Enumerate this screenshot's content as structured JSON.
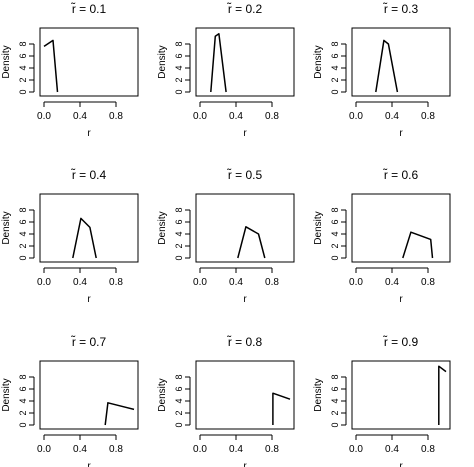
{
  "chart_data": [
    {
      "type": "line",
      "title": "r̃ = 0.1",
      "xlabel": "r",
      "ylabel": "Density",
      "xlim": [
        0,
        1
      ],
      "ylim": [
        0,
        10
      ],
      "x": [
        0.0,
        0.1,
        0.15
      ],
      "y": [
        7.6,
        8.6,
        0.0
      ]
    },
    {
      "type": "line",
      "title": "r̃ = 0.2",
      "xlabel": "r",
      "ylabel": "Density",
      "xlim": [
        0,
        1
      ],
      "ylim": [
        0,
        10
      ],
      "x": [
        0.12,
        0.17,
        0.21,
        0.29
      ],
      "y": [
        0.0,
        9.3,
        9.7,
        0.0
      ]
    },
    {
      "type": "line",
      "title": "r̃ = 0.3",
      "xlabel": "r",
      "ylabel": "Density",
      "xlim": [
        0,
        1
      ],
      "ylim": [
        0,
        10
      ],
      "x": [
        0.22,
        0.31,
        0.36,
        0.46
      ],
      "y": [
        0.0,
        8.6,
        8.0,
        0.0
      ]
    },
    {
      "type": "line",
      "title": "r̃ = 0.4",
      "xlabel": "r",
      "ylabel": "Density",
      "xlim": [
        0,
        1
      ],
      "ylim": [
        0,
        10
      ],
      "x": [
        0.32,
        0.41,
        0.51,
        0.58
      ],
      "y": [
        0.0,
        6.6,
        5.1,
        0.0
      ]
    },
    {
      "type": "line",
      "title": "r̃ = 0.5",
      "xlabel": "r",
      "ylabel": "Density",
      "xlim": [
        0,
        1
      ],
      "ylim": [
        0,
        10
      ],
      "x": [
        0.42,
        0.51,
        0.65,
        0.72
      ],
      "y": [
        0.0,
        5.2,
        4.0,
        0.0
      ]
    },
    {
      "type": "line",
      "title": "r̃ = 0.6",
      "xlabel": "r",
      "ylabel": "Density",
      "xlim": [
        0,
        1
      ],
      "ylim": [
        0,
        10
      ],
      "x": [
        0.52,
        0.61,
        0.83,
        0.85
      ],
      "y": [
        0.0,
        4.3,
        3.1,
        0.0
      ]
    },
    {
      "type": "line",
      "title": "r̃ = 0.7",
      "xlabel": "r",
      "ylabel": "Density",
      "xlim": [
        0,
        1
      ],
      "ylim": [
        0,
        10
      ],
      "x": [
        0.68,
        0.71,
        1.0
      ],
      "y": [
        0.0,
        3.7,
        2.6
      ]
    },
    {
      "type": "line",
      "title": "r̃ = 0.8",
      "xlabel": "r",
      "ylabel": "Density",
      "xlim": [
        0,
        1
      ],
      "ylim": [
        0,
        10
      ],
      "x": [
        0.81,
        0.81,
        1.0
      ],
      "y": [
        0.0,
        5.3,
        4.3
      ]
    },
    {
      "type": "line",
      "title": "r̃ = 0.9",
      "xlabel": "r",
      "ylabel": "Density",
      "xlim": [
        0,
        1
      ],
      "ylim": [
        0,
        10
      ],
      "x": [
        0.92,
        0.92,
        1.0
      ],
      "y": [
        0.0,
        9.8,
        8.9
      ]
    }
  ],
  "axes": {
    "x_ticks": [
      "0.0",
      "0.4",
      "0.8"
    ],
    "y_ticks": [
      "0",
      "2",
      "4",
      "6",
      "8"
    ]
  }
}
